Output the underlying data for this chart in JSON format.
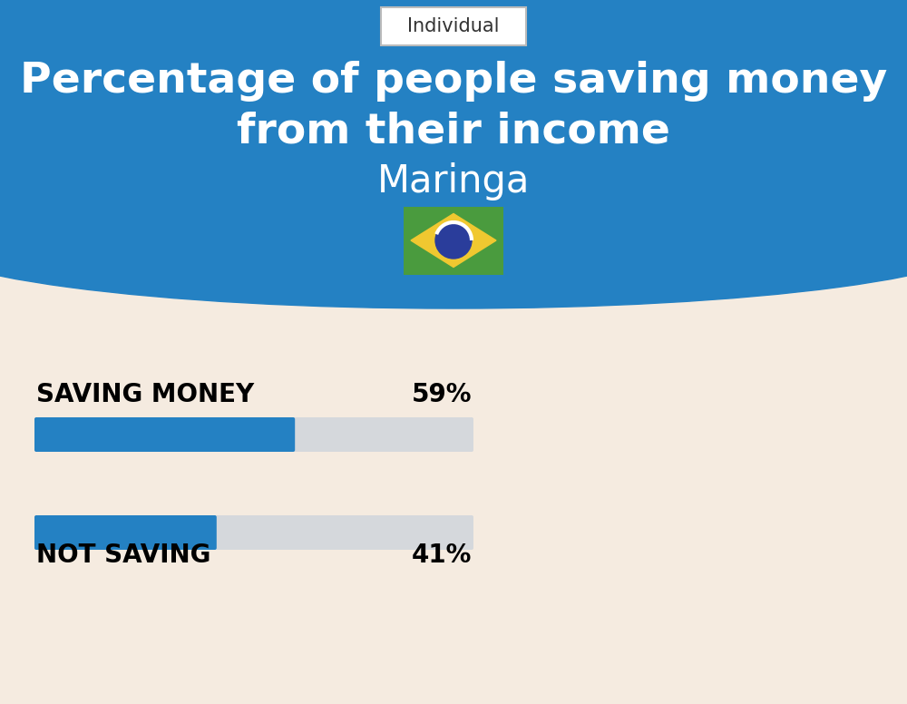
{
  "title_line1": "Percentage of people saving money",
  "title_line2": "from their income",
  "city": "Maringa",
  "tab_label": "Individual",
  "saving_label": "SAVING MONEY",
  "saving_value": 59,
  "saving_pct_text": "59%",
  "not_saving_label": "NOT SAVING",
  "not_saving_value": 41,
  "not_saving_pct_text": "41%",
  "bar_color": "#2481C3",
  "bar_bg_color": "#D5D8DC",
  "bg_color": "#F5EBE0",
  "header_bg_color": "#2481C3",
  "tab_color": "#FFFFFF",
  "title_color": "#FFFFFF",
  "city_color": "#FFFFFF",
  "label_color": "#000000",
  "pct_color": "#000000",
  "label_fontsize": 20,
  "pct_fontsize": 20,
  "title_fontsize": 34,
  "city_fontsize": 30,
  "tab_fontsize": 15,
  "flag_green": "#4A9B3E",
  "flag_yellow": "#F0C830",
  "flag_blue": "#2A3D9B",
  "flag_white": "#FFFFFF"
}
